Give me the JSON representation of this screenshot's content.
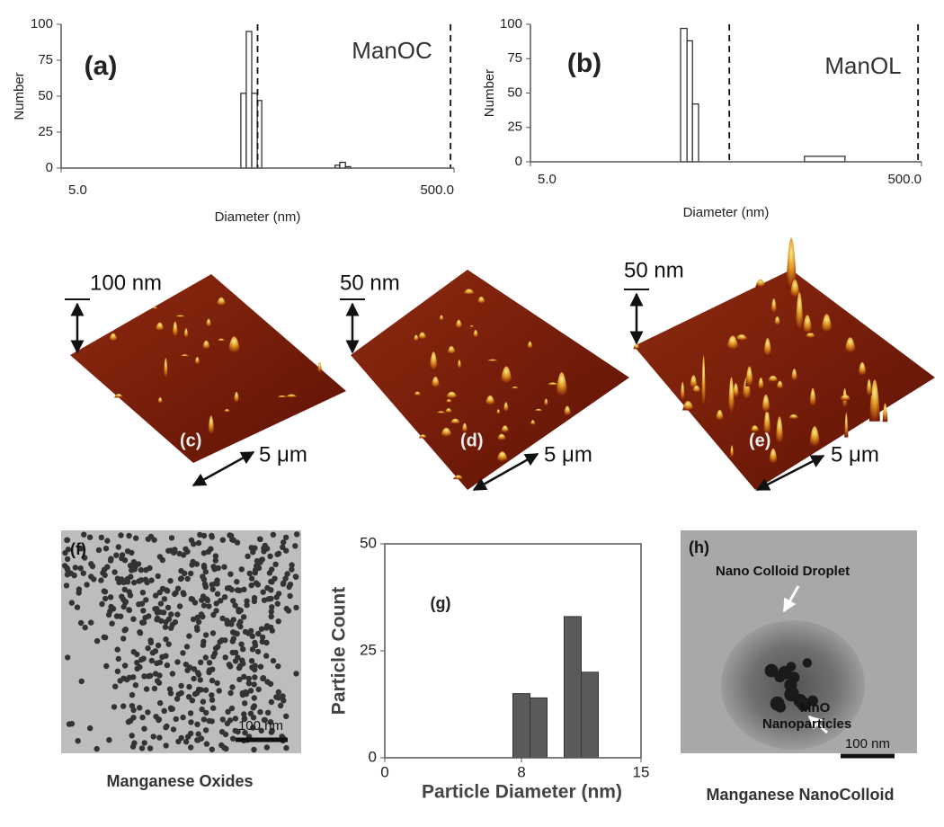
{
  "chart_data": [
    {
      "type": "histogram",
      "panel_label": "(a)",
      "title": "ManOC",
      "y_label": "Number",
      "x_label": "Diameter (nm)",
      "log_x": true,
      "xlim": [
        5,
        500
      ],
      "xticks": [
        {
          "value": 5,
          "label": "5.0"
        },
        {
          "value": 500,
          "label": "500.0"
        }
      ],
      "ylim": [
        0,
        100
      ],
      "yticks": [
        0,
        25,
        50,
        75,
        100
      ],
      "bins": [
        41.1,
        43.8,
        46.7,
        49.8,
        52.5,
        124,
        131,
        140,
        149
      ],
      "values": [
        52,
        95,
        52,
        47,
        0,
        2,
        4,
        1
      ],
      "color": "#ffffff",
      "vlines": [
        50,
        480
      ]
    },
    {
      "type": "histogram",
      "panel_label": "(b)",
      "title": "ManOL",
      "y_label": "Number",
      "x_label": "Diameter (nm)",
      "log_x": true,
      "xlim": [
        5,
        500
      ],
      "xticks": [
        {
          "value": 5,
          "label": "5.0"
        },
        {
          "value": 500,
          "label": "500.0"
        }
      ],
      "ylim": [
        0,
        100
      ],
      "yticks": [
        0,
        25,
        50,
        75,
        100
      ],
      "bins": [
        29.3,
        31.6,
        33.7,
        36.2,
        126,
        203
      ],
      "values": [
        97,
        88,
        42,
        0,
        4
      ],
      "color": "#ffffff",
      "vlines": [
        52,
        480
      ]
    },
    {
      "type": "histogram",
      "panel_label": "(g)",
      "y_label": "Particle Count",
      "x_label": "Particle Diameter (nm)",
      "log_x": false,
      "xlim": [
        0,
        15
      ],
      "xticks": [
        0,
        8,
        15
      ],
      "ylim": [
        0,
        50
      ],
      "yticks": [
        0,
        25,
        50
      ],
      "bins": [
        7.5,
        8.5,
        9.5,
        10.5,
        11.5,
        12.5
      ],
      "values": [
        15,
        14,
        0,
        33,
        20
      ],
      "color": "#5a5a5a",
      "frame": true
    }
  ],
  "afm_panels": [
    {
      "label": "(c)",
      "height_scale": "100 nm",
      "lateral_scale": "5 μm"
    },
    {
      "label": "(d)",
      "height_scale": "50 nm",
      "lateral_scale": "5 μm"
    },
    {
      "label": "(e)",
      "height_scale": "50 nm",
      "lateral_scale": "5 μm"
    }
  ],
  "tem_panels": [
    {
      "label": "(f)",
      "scale": "100 nm",
      "caption": "Manganese Oxides"
    },
    {
      "label": "(h)",
      "scale": "100 nm",
      "caption": "Manganese NanoColloid",
      "annotations": [
        "Nano Colloid Droplet",
        "MnO",
        "Nanoparticles"
      ]
    }
  ]
}
